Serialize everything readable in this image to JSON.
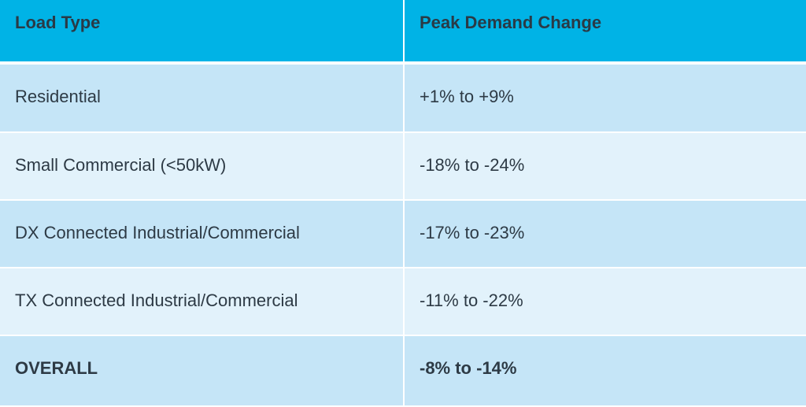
{
  "table": {
    "headers": [
      "Load Type",
      "Peak Demand Change"
    ],
    "rows": [
      {
        "load_type": "Residential",
        "change": "+1% to +9%"
      },
      {
        "load_type": "Small Commercial (<50kW)",
        "change": "-18% to -24%"
      },
      {
        "load_type": "DX Connected Industrial/Commercial",
        "change": "-17% to -23%"
      },
      {
        "load_type": "TX Connected Industrial/Commercial",
        "change": "-11% to -22%"
      },
      {
        "load_type": "OVERALL",
        "change": "-8% to -14%"
      }
    ],
    "colors": {
      "header_bg": "#00b3e6",
      "row_dark": "#c5e5f7",
      "row_light": "#e2f2fb",
      "text": "#2d3a45"
    }
  }
}
